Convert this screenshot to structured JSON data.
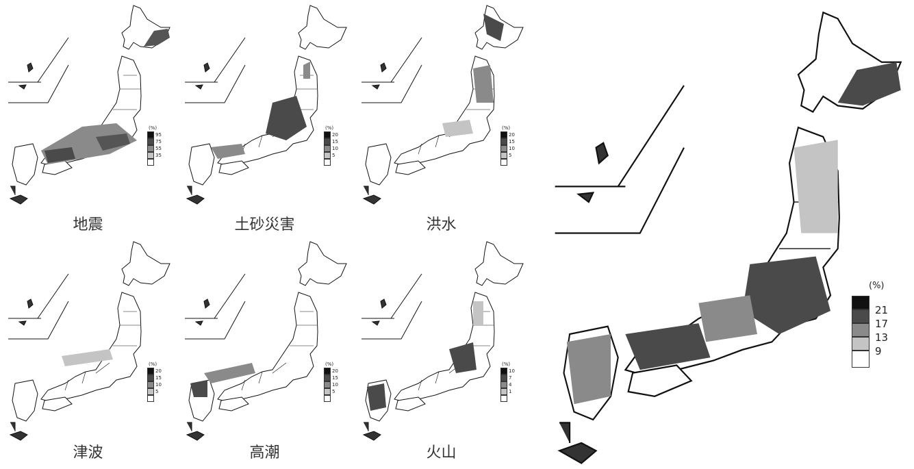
{
  "legend_unit": "(%)",
  "colors": {
    "level4": "#111111",
    "level3": "#4a4a4a",
    "level2": "#8a8a8a",
    "level1": "#c4c4c4",
    "level0": "#ffffff"
  },
  "maps": [
    {
      "hazard": "地震",
      "legend": [
        "95",
        "75",
        "55",
        "35"
      ]
    },
    {
      "hazard": "土砂災害",
      "legend": [
        "20",
        "15",
        "10",
        "5"
      ]
    },
    {
      "hazard": "洪水",
      "legend": [
        "20",
        "15",
        "10",
        "5"
      ]
    },
    {
      "hazard": "津波",
      "legend": [
        "20",
        "15",
        "10",
        "5"
      ]
    },
    {
      "hazard": "高潮",
      "legend": [
        "20",
        "15",
        "10",
        "5"
      ]
    },
    {
      "hazard": "火山",
      "legend": [
        "10",
        "7",
        "4",
        "1"
      ]
    }
  ],
  "combined_legend": [
    "21",
    "17",
    "13",
    "9"
  ]
}
